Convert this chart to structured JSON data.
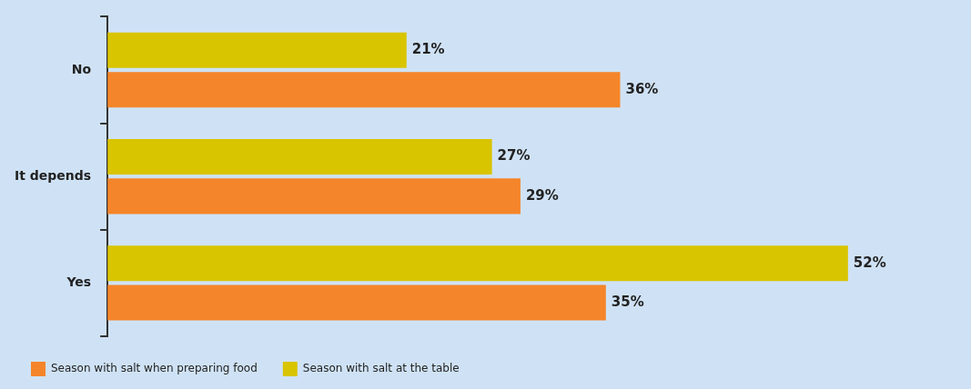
{
  "chart_data": {
    "type": "bar",
    "orientation": "horizontal",
    "categories": [
      "No",
      "It depends",
      "Yes"
    ],
    "series": [
      {
        "name": "Season with salt at the table",
        "color": "#d9c400",
        "values": [
          21,
          27,
          52
        ],
        "value_labels": [
          "21%",
          "27%",
          "52%"
        ]
      },
      {
        "name": "Season with salt when preparing food",
        "color": "#f5852a",
        "values": [
          36,
          29,
          35
        ],
        "value_labels": [
          "36%",
          "29%",
          "35%"
        ]
      }
    ],
    "legend": "bottom left",
    "grid": false,
    "tick_labels": "y"
  }
}
